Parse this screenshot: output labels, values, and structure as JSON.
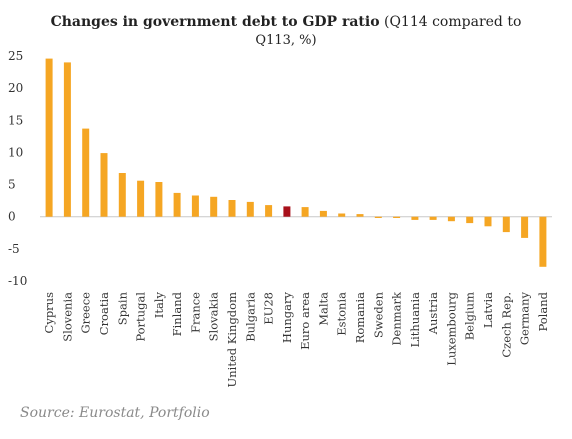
{
  "chart_data": {
    "type": "bar",
    "title_bold": "Changes in government debt to GDP ratio",
    "title_rest_line1": "(Q114 compared to",
    "title_rest_line2": "Q113, %)",
    "xlabel": "",
    "ylabel": "",
    "ylim": [
      -10,
      25
    ],
    "yticks": [
      -10,
      -5,
      0,
      5,
      10,
      15,
      20,
      25
    ],
    "grid": false,
    "legend": "none",
    "categories": [
      "Cyprus",
      "Slovenia",
      "Greece",
      "Croatia",
      "Spain",
      "Portugal",
      "Italy",
      "Finland",
      "France",
      "Slovakia",
      "United Kingdom",
      "Bulgaria",
      "EU28",
      "Hungary",
      "Euro area",
      "Malta",
      "Estonia",
      "Romania",
      "Sweden",
      "Denmark",
      "Lithuania",
      "Austria",
      "Luxembourg",
      "Belgium",
      "Latvia",
      "Czech Rep.",
      "Germany",
      "Poland"
    ],
    "values": [
      24.6,
      24.0,
      13.7,
      9.9,
      6.8,
      5.6,
      5.4,
      3.7,
      3.3,
      3.1,
      2.6,
      2.3,
      1.8,
      1.6,
      1.5,
      0.9,
      0.5,
      0.4,
      -0.2,
      -0.2,
      -0.5,
      -0.5,
      -0.7,
      -1.0,
      -1.5,
      -2.4,
      -3.3,
      -7.8
    ],
    "highlight": "Hungary",
    "colors": {
      "bar": "#f5a623",
      "highlight": "#a8101a",
      "axis": "#c8c8c8",
      "text": "#333333"
    }
  },
  "source": "Source: Eurostat, Portfolio"
}
